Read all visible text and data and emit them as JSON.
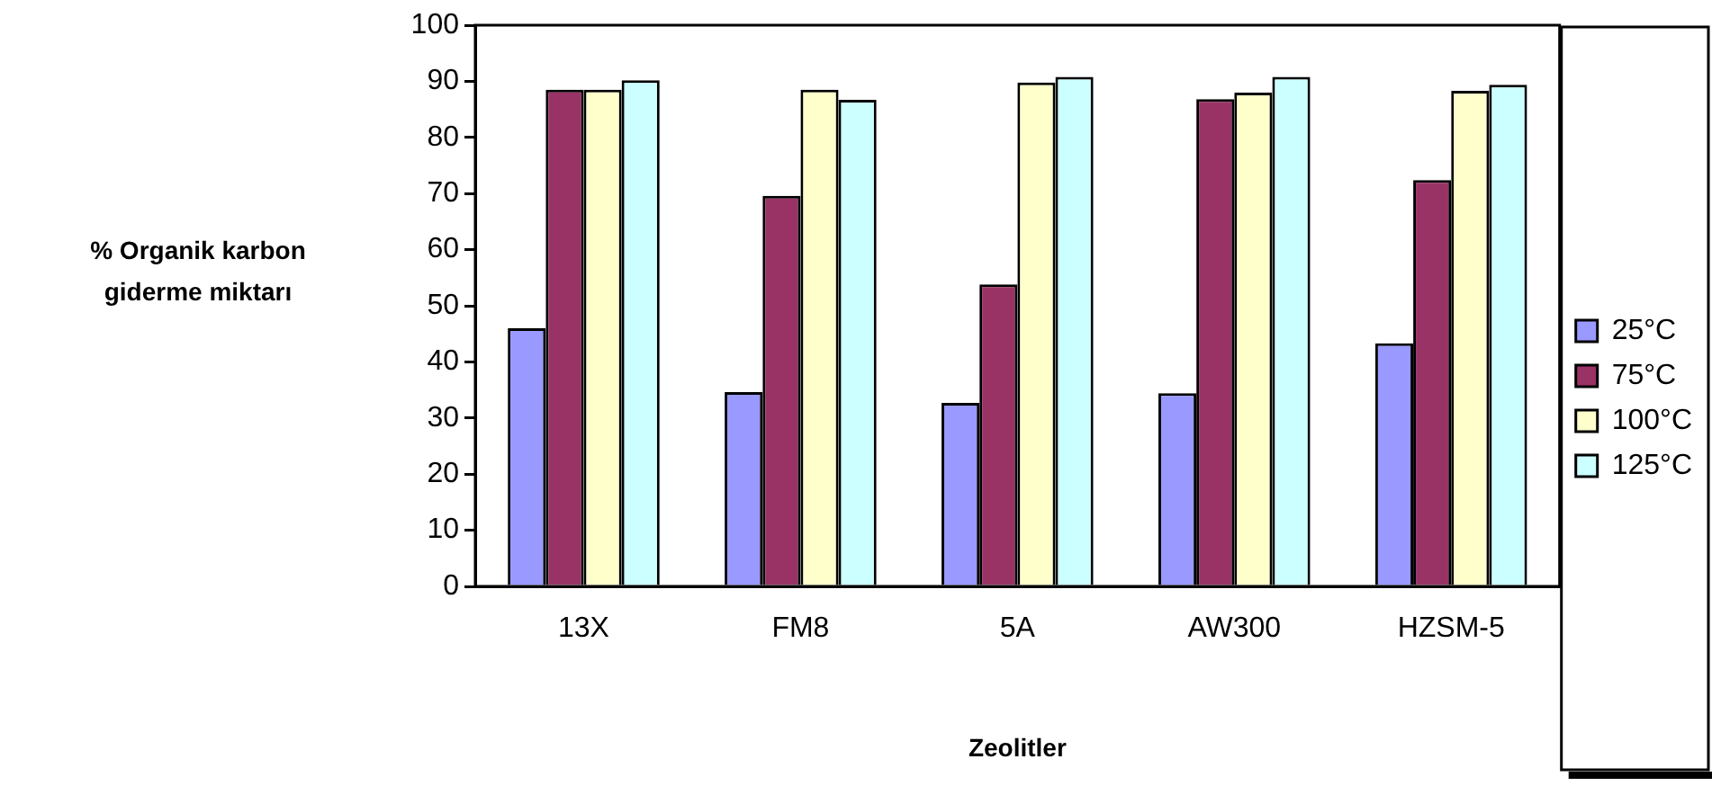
{
  "chart_data": {
    "type": "bar",
    "xlabel": "Zeolitler",
    "ylabel": "% Organik karbon giderme miktarı",
    "categories": [
      "13X",
      "FM8",
      "5A",
      "AW300",
      "HZSM-5"
    ],
    "series": [
      {
        "name": "25°C",
        "color": "#9999ff",
        "values": [
          46.0,
          34.6,
          32.7,
          34.4,
          43.3
        ]
      },
      {
        "name": "75°C",
        "color": "#993366",
        "values": [
          88.5,
          69.6,
          53.8,
          86.8,
          72.4
        ]
      },
      {
        "name": "100°C",
        "color": "#ffffcc",
        "values": [
          88.5,
          88.5,
          89.8,
          88.0,
          88.3
        ]
      },
      {
        "name": "125°C",
        "color": "#ccffff",
        "values": [
          90.2,
          86.7,
          90.8,
          90.8,
          89.4
        ]
      }
    ],
    "ylim": [
      0,
      100
    ],
    "yticks": [
      0,
      10,
      20,
      30,
      40,
      50,
      60,
      70,
      80,
      90,
      100
    ],
    "grid": false,
    "legend": "right"
  }
}
